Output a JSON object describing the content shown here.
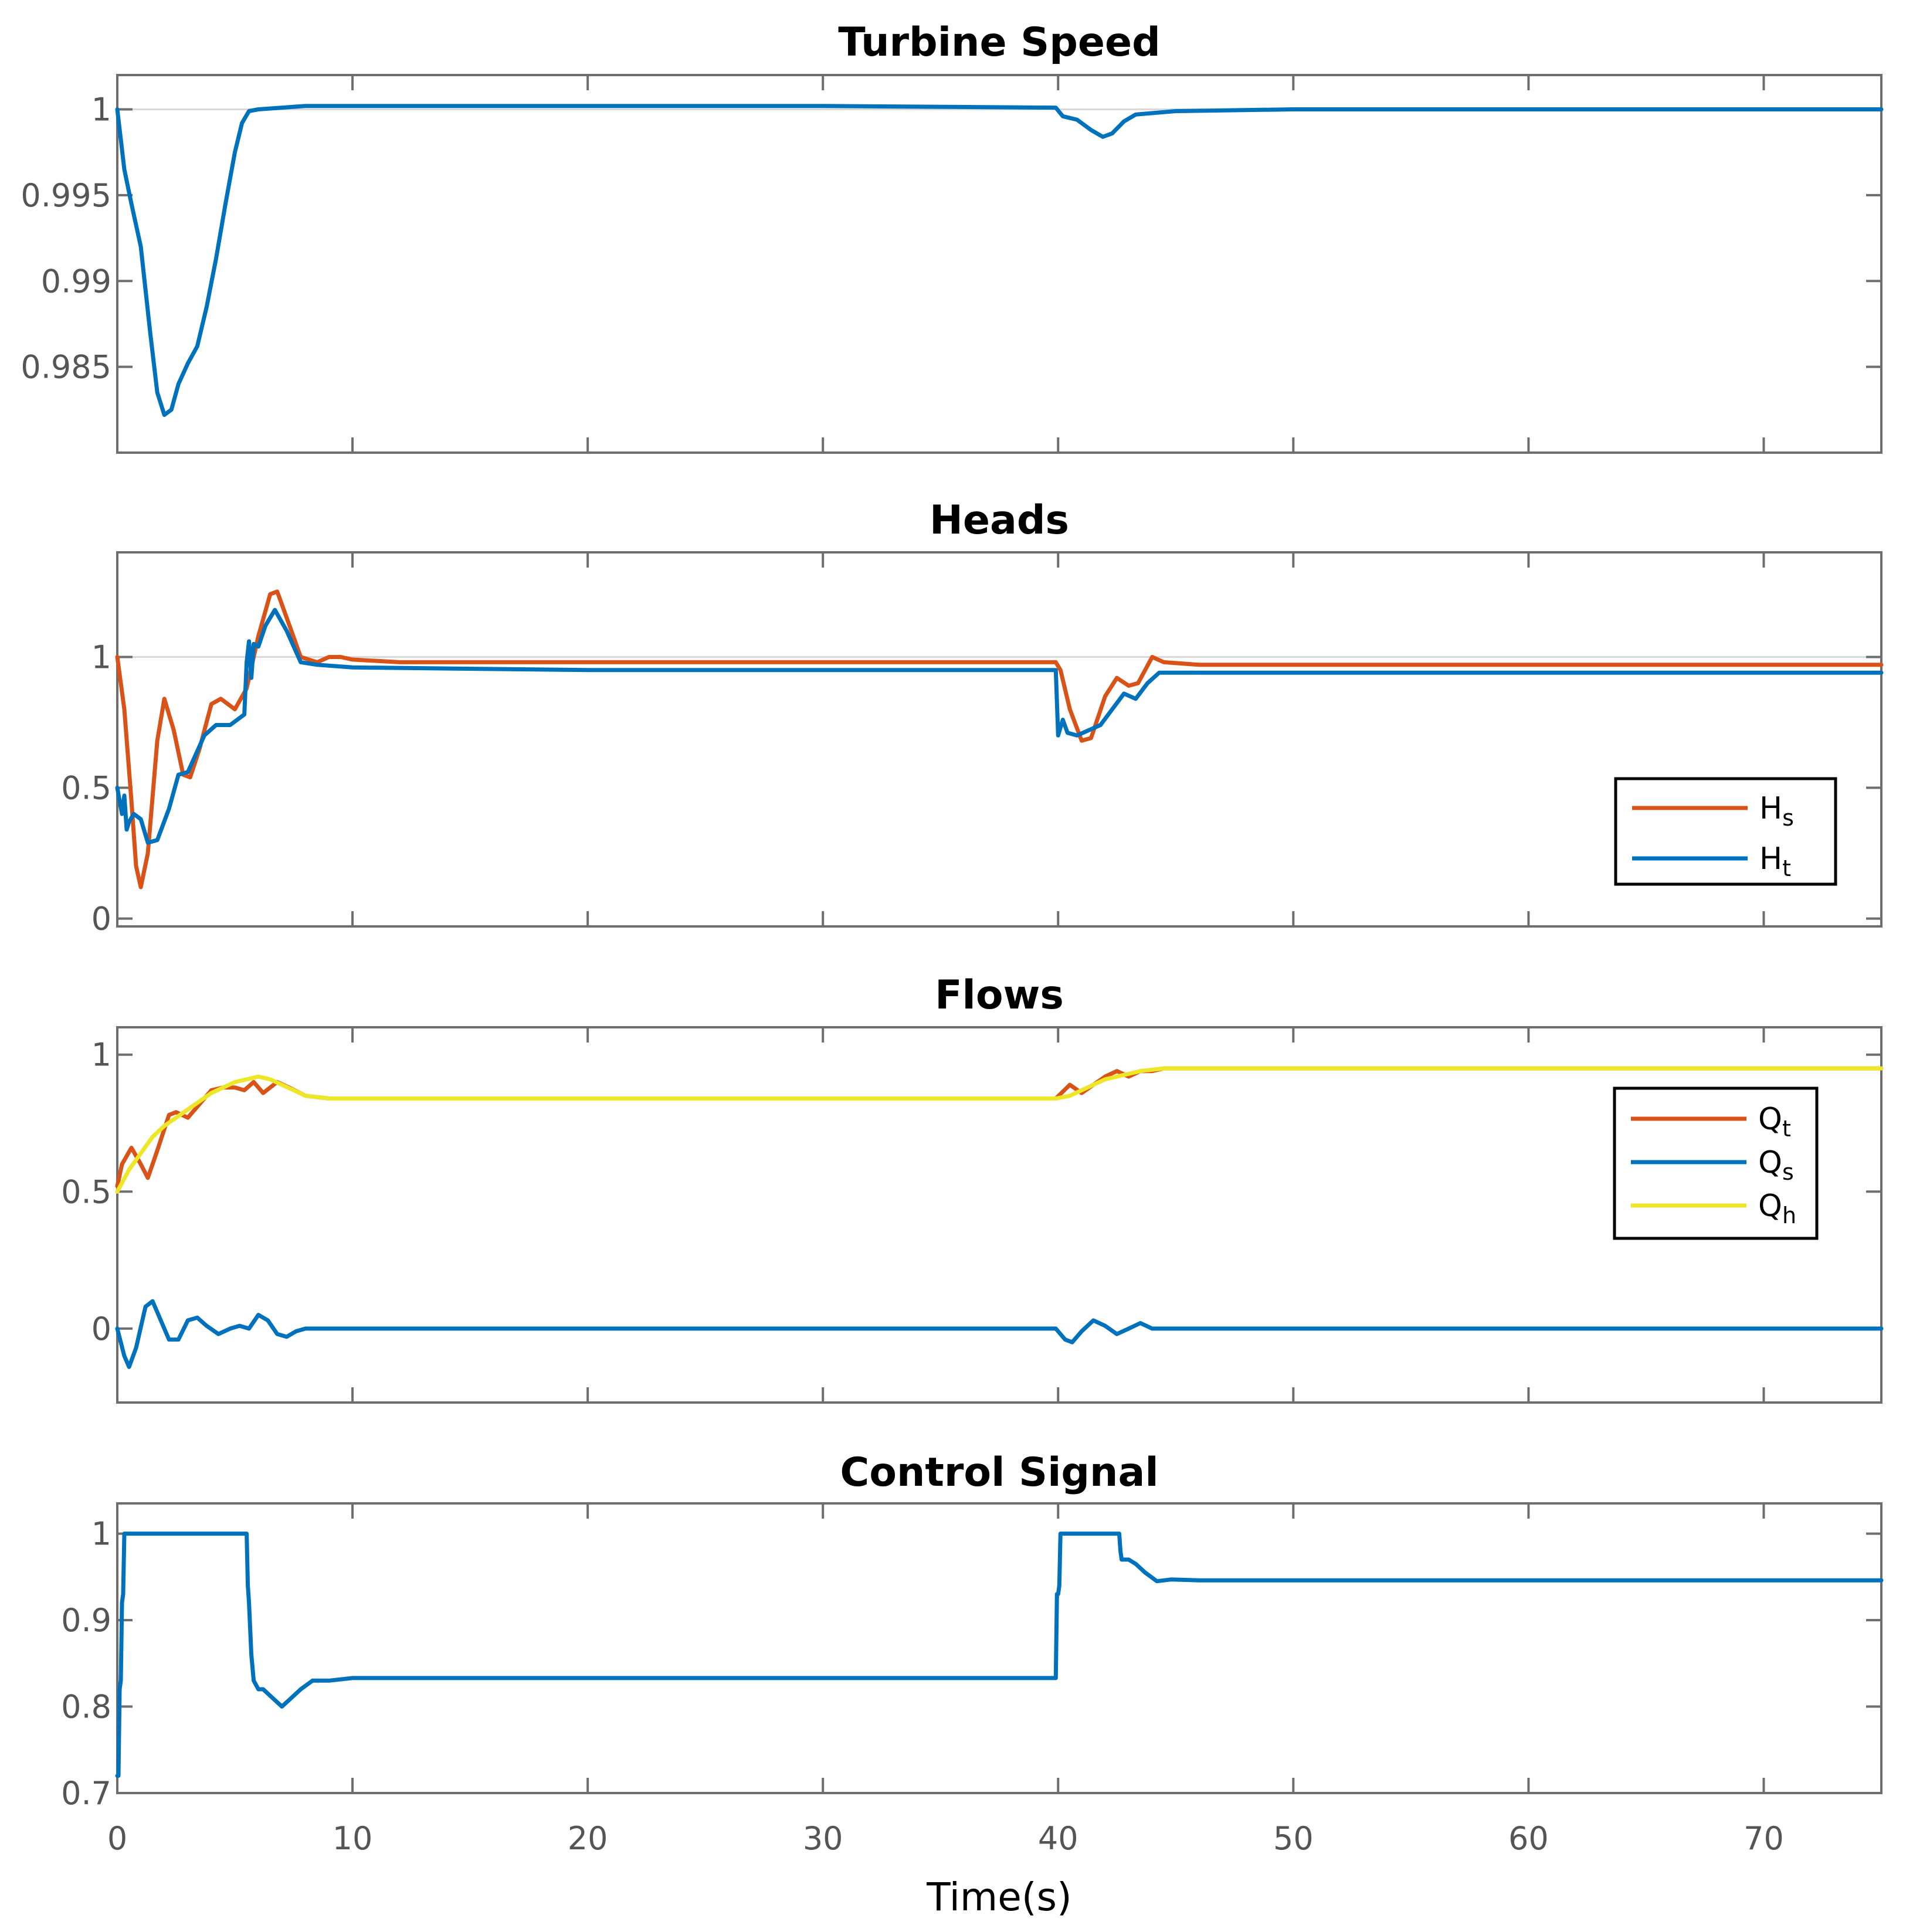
{
  "chart_data": [
    {
      "type": "line",
      "title": "Turbine Speed",
      "xlim": [
        0,
        75
      ],
      "ylim": [
        0.98,
        1.002
      ],
      "yticks": [
        0.985,
        0.99,
        0.995,
        1
      ],
      "yticklabels": [
        "0.985",
        "0.99",
        "0.995",
        "1"
      ],
      "show_xticklabels": false,
      "reference_line": 1,
      "legend": null,
      "series": [
        {
          "name": "speed",
          "color": "#0072BD",
          "x": [
            0,
            0.3,
            0.6,
            1.0,
            1.4,
            1.7,
            2.0,
            2.3,
            2.6,
            3.0,
            3.4,
            3.8,
            4.2,
            4.6,
            5.0,
            5.3,
            5.6,
            6.0,
            7.0,
            8.0,
            10,
            20,
            30,
            39.9,
            40.2,
            40.8,
            41.4,
            41.9,
            42.3,
            42.8,
            43.3,
            45,
            50,
            60,
            75
          ],
          "y": [
            1.0,
            0.9965,
            0.9945,
            0.992,
            0.987,
            0.9835,
            0.9822,
            0.9825,
            0.984,
            0.9852,
            0.9862,
            0.9885,
            0.9913,
            0.9945,
            0.9975,
            0.9992,
            0.9999,
            1.0,
            1.0001,
            1.0002,
            1.0002,
            1.0002,
            1.0002,
            1.0001,
            0.9996,
            0.9994,
            0.9988,
            0.9984,
            0.9986,
            0.9993,
            0.9997,
            0.9999,
            1.0,
            1.0,
            1.0
          ]
        }
      ]
    },
    {
      "type": "line",
      "title": "Heads",
      "xlim": [
        0,
        75
      ],
      "ylim": [
        -0.03,
        1.4
      ],
      "yticks": [
        0,
        0.5,
        1
      ],
      "yticklabels": [
        "0",
        "0.5",
        "1"
      ],
      "show_xticklabels": false,
      "reference_line": 1,
      "legend": {
        "placement": "lower-right",
        "entries": [
          {
            "base": "H",
            "sub": "s",
            "series": 0
          },
          {
            "base": "H",
            "sub": "t",
            "series": 1
          }
        ]
      },
      "series": [
        {
          "name": "Hs",
          "color": "#D95319",
          "x": [
            0,
            0.3,
            0.6,
            0.8,
            1.0,
            1.3,
            1.7,
            2.0,
            2.4,
            2.8,
            3.1,
            3.5,
            4.0,
            4.4,
            5.0,
            5.5,
            6.0,
            6.5,
            6.8,
            7.2,
            7.8,
            8.5,
            9.0,
            9.5,
            10,
            12,
            20,
            30,
            39.9,
            40.1,
            40.5,
            41.0,
            41.4,
            42.0,
            42.5,
            43.0,
            43.4,
            44.0,
            44.5,
            46,
            50,
            60,
            75
          ],
          "y": [
            1.0,
            0.8,
            0.45,
            0.2,
            0.12,
            0.25,
            0.68,
            0.84,
            0.72,
            0.55,
            0.54,
            0.65,
            0.82,
            0.84,
            0.8,
            0.88,
            1.08,
            1.24,
            1.25,
            1.15,
            1.0,
            0.98,
            1.0,
            1.0,
            0.99,
            0.98,
            0.98,
            0.98,
            0.98,
            0.95,
            0.8,
            0.68,
            0.69,
            0.85,
            0.92,
            0.89,
            0.9,
            1.0,
            0.98,
            0.97,
            0.97,
            0.97,
            0.97
          ]
        },
        {
          "name": "Ht",
          "color": "#0072BD",
          "x": [
            0,
            0.2,
            0.3,
            0.4,
            0.5,
            0.7,
            1.0,
            1.3,
            1.7,
            2.2,
            2.6,
            3.0,
            3.3,
            3.7,
            4.2,
            4.8,
            5.4,
            5.5,
            5.6,
            5.7,
            5.8,
            6.0,
            6.3,
            6.7,
            7.2,
            7.8,
            8.5,
            10,
            20,
            30,
            39.9,
            40.0,
            40.2,
            40.4,
            40.8,
            41.3,
            41.8,
            42.3,
            42.8,
            43.3,
            43.8,
            44.3,
            45,
            50,
            60,
            75
          ],
          "y": [
            0.5,
            0.4,
            0.47,
            0.34,
            0.37,
            0.4,
            0.38,
            0.29,
            0.3,
            0.42,
            0.55,
            0.56,
            0.62,
            0.7,
            0.74,
            0.74,
            0.78,
            0.98,
            1.06,
            0.92,
            1.05,
            1.04,
            1.12,
            1.18,
            1.1,
            0.98,
            0.97,
            0.96,
            0.95,
            0.95,
            0.95,
            0.7,
            0.76,
            0.71,
            0.7,
            0.72,
            0.74,
            0.8,
            0.86,
            0.84,
            0.9,
            0.94,
            0.94,
            0.94,
            0.94,
            0.94
          ]
        }
      ]
    },
    {
      "type": "line",
      "title": "Flows",
      "xlim": [
        0,
        75
      ],
      "ylim": [
        -0.27,
        1.1
      ],
      "yticks": [
        0,
        0.5,
        1
      ],
      "yticklabels": [
        "0",
        "0.5",
        "1"
      ],
      "show_xticklabels": false,
      "reference_line": null,
      "legend": {
        "placement": "right",
        "entries": [
          {
            "base": "Q",
            "sub": "t",
            "series": 0
          },
          {
            "base": "Q",
            "sub": "s",
            "series": 1
          },
          {
            "base": "Q",
            "sub": "h",
            "series": 2
          }
        ]
      },
      "series": [
        {
          "name": "Qt",
          "color": "#D95319",
          "x": [
            0,
            0.2,
            0.6,
            1.0,
            1.3,
            1.7,
            2.2,
            2.5,
            3.0,
            3.5,
            4.0,
            4.5,
            5.0,
            5.4,
            5.8,
            6.2,
            6.8,
            7.3,
            8.0,
            9.0,
            10,
            15,
            20,
            30,
            39.9,
            40.5,
            41.0,
            41.5,
            42.0,
            42.5,
            43.0,
            43.5,
            44.0,
            44.5,
            45,
            50,
            60,
            75
          ],
          "y": [
            0.52,
            0.6,
            0.66,
            0.6,
            0.55,
            0.65,
            0.78,
            0.79,
            0.77,
            0.82,
            0.87,
            0.88,
            0.88,
            0.87,
            0.9,
            0.86,
            0.9,
            0.88,
            0.85,
            0.84,
            0.84,
            0.84,
            0.84,
            0.84,
            0.84,
            0.89,
            0.86,
            0.89,
            0.92,
            0.94,
            0.92,
            0.94,
            0.94,
            0.95,
            0.95,
            0.95,
            0.95,
            0.95
          ]
        },
        {
          "name": "Qs",
          "color": "#0072BD",
          "x": [
            0,
            0.3,
            0.5,
            0.8,
            1.2,
            1.5,
            1.8,
            2.2,
            2.6,
            3.0,
            3.4,
            3.8,
            4.3,
            4.8,
            5.2,
            5.6,
            6.0,
            6.4,
            6.8,
            7.2,
            7.6,
            8.0,
            8.5,
            10,
            20,
            30,
            39.9,
            40.3,
            40.6,
            41.0,
            41.5,
            42.0,
            42.5,
            43.0,
            43.5,
            44.0,
            45,
            50,
            60,
            75
          ],
          "y": [
            0.0,
            -0.1,
            -0.14,
            -0.07,
            0.08,
            0.1,
            0.04,
            -0.04,
            -0.04,
            0.03,
            0.04,
            0.01,
            -0.02,
            0.0,
            0.01,
            0.0,
            0.05,
            0.03,
            -0.02,
            -0.03,
            -0.01,
            0.0,
            0.0,
            0.0,
            0.0,
            0.0,
            0.0,
            -0.04,
            -0.05,
            -0.01,
            0.03,
            0.01,
            -0.02,
            0.0,
            0.02,
            0.0,
            0.0,
            0.0,
            0.0,
            0.0
          ]
        },
        {
          "name": "Qh",
          "color": "#EDE728",
          "x": [
            0,
            0.5,
            1.0,
            1.5,
            2.0,
            2.5,
            3.0,
            3.5,
            4.0,
            4.5,
            5.0,
            5.5,
            6.0,
            6.5,
            7.0,
            7.5,
            8.0,
            9.0,
            10,
            20,
            30,
            39.9,
            40.5,
            41.0,
            41.5,
            42.0,
            42.5,
            43.0,
            43.5,
            44.0,
            44.5,
            45,
            50,
            60,
            75
          ],
          "y": [
            0.5,
            0.58,
            0.64,
            0.7,
            0.74,
            0.77,
            0.8,
            0.83,
            0.86,
            0.88,
            0.9,
            0.91,
            0.92,
            0.91,
            0.89,
            0.87,
            0.85,
            0.84,
            0.84,
            0.84,
            0.84,
            0.84,
            0.85,
            0.87,
            0.89,
            0.91,
            0.92,
            0.93,
            0.94,
            0.945,
            0.95,
            0.95,
            0.95,
            0.95,
            0.95
          ]
        }
      ]
    },
    {
      "type": "line",
      "title": "Control Signal",
      "xlim": [
        0,
        75
      ],
      "ylim": [
        0.7,
        1.035
      ],
      "yticks": [
        0.7,
        0.8,
        0.9,
        1
      ],
      "yticklabels": [
        "0.7",
        "0.8",
        "0.9",
        "1"
      ],
      "show_xticklabels": true,
      "xticks": [
        0,
        10,
        20,
        30,
        40,
        50,
        60,
        70
      ],
      "xticklabels": [
        "0",
        "10",
        "20",
        "30",
        "40",
        "50",
        "60",
        "70"
      ],
      "xlabel": "Time(s)",
      "reference_line": null,
      "legend": null,
      "series": [
        {
          "name": "control",
          "color": "#0072BD",
          "x": [
            0,
            0.05,
            0.1,
            0.15,
            0.2,
            0.25,
            0.3,
            5.5,
            5.55,
            5.6,
            5.7,
            5.8,
            6.0,
            6.2,
            6.6,
            7.0,
            7.4,
            7.8,
            8.3,
            9.0,
            10,
            15,
            20,
            30,
            39.9,
            39.95,
            40.0,
            40.05,
            40.1,
            42.6,
            42.65,
            42.7,
            43.0,
            43.3,
            43.7,
            44.2,
            44.8,
            46,
            50,
            60,
            75
          ],
          "y": [
            0.72,
            0.72,
            0.82,
            0.83,
            0.92,
            0.93,
            1.0,
            1.0,
            0.94,
            0.92,
            0.86,
            0.83,
            0.82,
            0.82,
            0.81,
            0.8,
            0.81,
            0.82,
            0.83,
            0.83,
            0.833,
            0.833,
            0.833,
            0.833,
            0.833,
            0.93,
            0.93,
            0.94,
            1.0,
            1.0,
            0.98,
            0.97,
            0.97,
            0.965,
            0.955,
            0.945,
            0.947,
            0.946,
            0.946,
            0.946,
            0.946
          ]
        }
      ]
    }
  ]
}
